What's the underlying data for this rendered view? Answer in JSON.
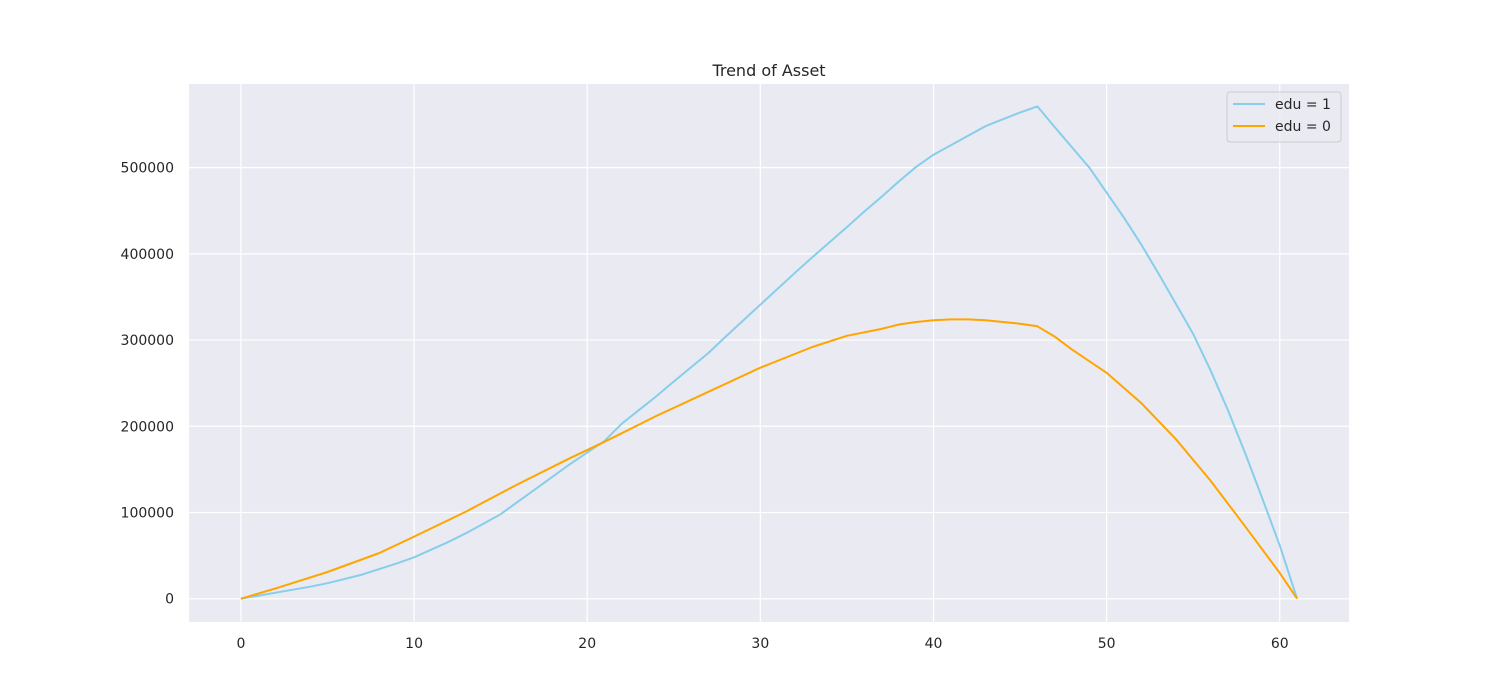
{
  "chart_data": {
    "type": "line",
    "title": "Trend of Asset",
    "xlabel": "",
    "ylabel": "",
    "xlim": [
      -3,
      64
    ],
    "ylim": [
      -27000,
      597000
    ],
    "xticks": [
      0,
      10,
      20,
      30,
      40,
      50,
      60
    ],
    "yticks": [
      0,
      100000,
      200000,
      300000,
      400000,
      500000
    ],
    "grid": true,
    "legend_position": "upper right",
    "series": [
      {
        "name": "edu = 1",
        "color": "#87CEEB",
        "x": [
          0,
          2,
          4,
          5,
          7,
          9,
          10,
          12,
          13,
          15,
          17,
          19,
          21,
          22,
          24,
          25,
          27,
          28,
          30,
          32,
          33,
          35,
          36,
          37,
          38,
          39,
          40,
          41,
          42,
          43,
          44,
          45,
          46,
          47,
          49,
          51,
          52,
          53,
          55,
          56,
          57,
          58,
          59,
          60,
          61
        ],
        "y": [
          0,
          7000,
          14000,
          18000,
          28000,
          41000,
          48000,
          66000,
          76000,
          98000,
          127000,
          156000,
          183000,
          203000,
          235000,
          252000,
          285000,
          304000,
          341000,
          378000,
          396000,
          431000,
          449000,
          466000,
          484000,
          501000,
          515000,
          526000,
          537000,
          548000,
          556000,
          564000,
          571000,
          547000,
          500000,
          442000,
          411000,
          377000,
          307000,
          265000,
          219000,
          169000,
          116000,
          62000,
          0
        ]
      },
      {
        "name": "edu = 0",
        "color": "#FFA500",
        "x": [
          0,
          2,
          5,
          8,
          10,
          13,
          16,
          19,
          21,
          24,
          27,
          30,
          33,
          35,
          37,
          38,
          39,
          40,
          41,
          42,
          43,
          44,
          45,
          46,
          47,
          48,
          50,
          52,
          54,
          56,
          58,
          60,
          61
        ],
        "y": [
          0,
          12000,
          31000,
          53000,
          72000,
          101000,
          133000,
          163000,
          182000,
          212000,
          240000,
          268000,
          292000,
          305000,
          313000,
          318000,
          321000,
          323000,
          324000,
          324000,
          323000,
          321000,
          319000,
          316000,
          304000,
          289000,
          262000,
          227000,
          185000,
          137000,
          84000,
          30000,
          0
        ]
      }
    ]
  }
}
